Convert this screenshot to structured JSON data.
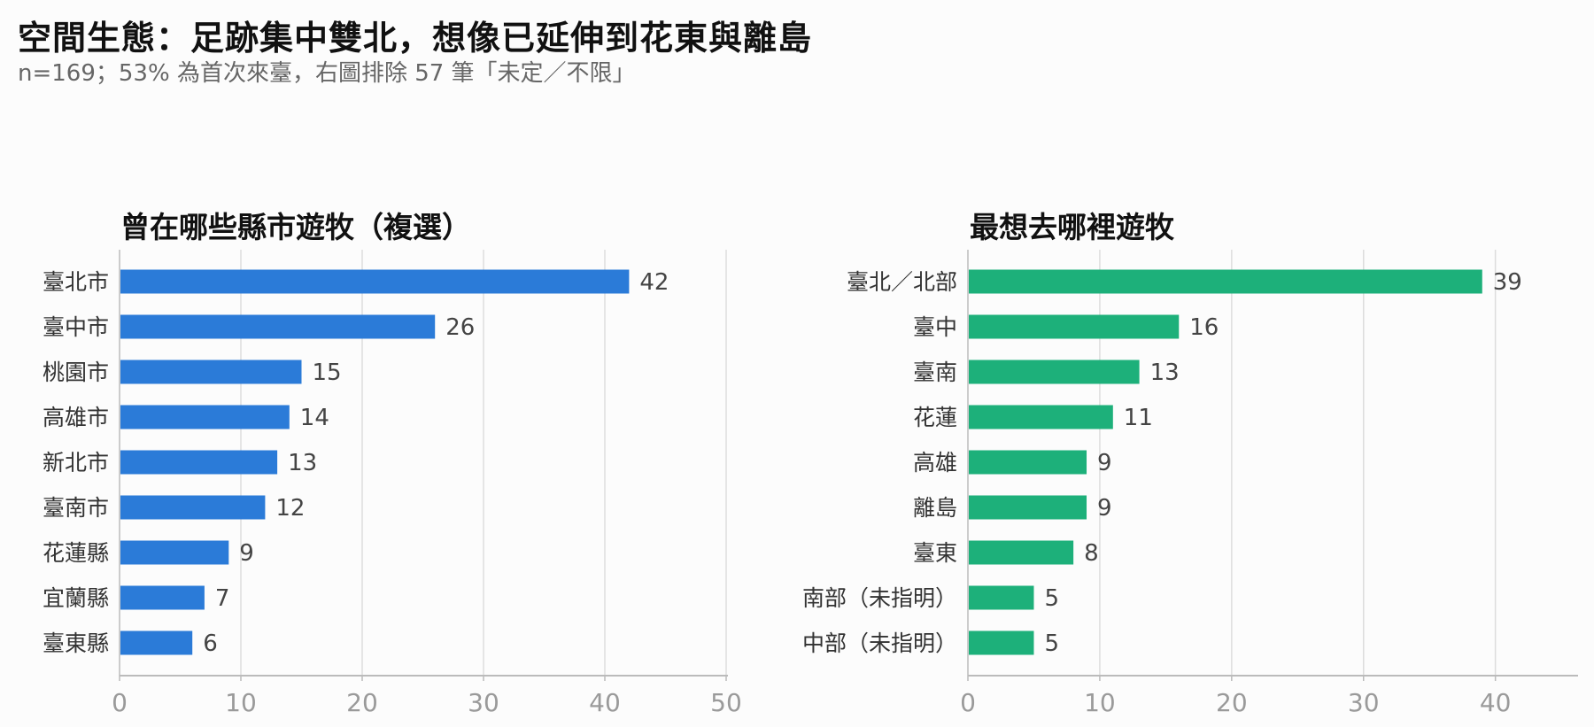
{
  "title": "空間生態：足跡集中雙北，想像已延伸到花東與離島",
  "subtitle": "n=169；53% 為首次來臺，右圖排除 57 筆「未定／不限」",
  "colors": {
    "left_bar": "#2b7bd8",
    "right_bar": "#1db07a",
    "grid": "#dddddd",
    "axis": "#bbbbbb"
  },
  "chart_data": [
    {
      "type": "bar",
      "orientation": "horizontal",
      "title": "曾在哪些縣市遊牧（複選）",
      "categories": [
        "臺北市",
        "臺中市",
        "桃園市",
        "高雄市",
        "新北市",
        "臺南市",
        "花蓮縣",
        "宜蘭縣",
        "臺東縣"
      ],
      "values": [
        42,
        26,
        15,
        14,
        13,
        12,
        9,
        7,
        6
      ],
      "xlim": [
        0,
        50
      ],
      "ticks": [
        0,
        10,
        20,
        30,
        40,
        50
      ],
      "grid": "vertical"
    },
    {
      "type": "bar",
      "orientation": "horizontal",
      "title": "最想去哪裡遊牧",
      "categories": [
        "臺北／北部",
        "臺中",
        "臺南",
        "花蓮",
        "高雄",
        "離島",
        "臺東",
        "南部（未指明）",
        "中部（未指明）"
      ],
      "values": [
        39,
        16,
        13,
        11,
        9,
        9,
        8,
        5,
        5
      ],
      "xlim": [
        0,
        46
      ],
      "ticks": [
        0,
        10,
        20,
        30,
        40
      ],
      "grid": "vertical"
    }
  ]
}
